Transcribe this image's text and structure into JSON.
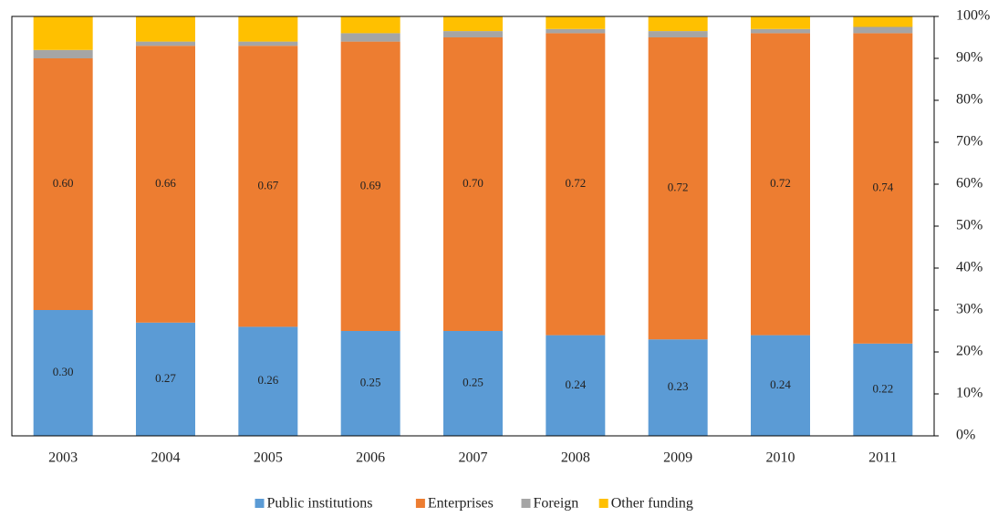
{
  "chart_data": {
    "type": "stacked_bar",
    "categories": [
      "2003",
      "2004",
      "2005",
      "2006",
      "2007",
      "2008",
      "2009",
      "2010",
      "2011"
    ],
    "series": [
      {
        "name": "Public institutions",
        "color": "#5b9bd5",
        "values": [
          30,
          27,
          26,
          25,
          25,
          24,
          23,
          24,
          22
        ],
        "value_labels": [
          "0.30",
          "0.27",
          "0.26",
          "0.25",
          "0.25",
          "0.24",
          "0.23",
          "0.24",
          "0.22"
        ]
      },
      {
        "name": "Enterprises",
        "color": "#ed7d31",
        "values": [
          60,
          66,
          67,
          69,
          70,
          72,
          72,
          72,
          74
        ],
        "value_labels": [
          "0.60",
          "0.66",
          "0.67",
          "0.69",
          "0.70",
          "0.72",
          "0.72",
          "0.72",
          "0.74"
        ]
      },
      {
        "name": "Foreign",
        "color": "#a5a5a5",
        "values": [
          2,
          1,
          1,
          2,
          1.5,
          1,
          1.5,
          1,
          1.5
        ]
      },
      {
        "name": "Other funding",
        "color": "#ffc000",
        "values": [
          8,
          6,
          6,
          4,
          3.5,
          3,
          3.5,
          3,
          2.5
        ]
      }
    ],
    "ylim": [
      0,
      100
    ],
    "yticks": [
      {
        "value": 0,
        "label": "0%"
      },
      {
        "value": 10,
        "label": "10%"
      },
      {
        "value": 20,
        "label": "20%"
      },
      {
        "value": 30,
        "label": "30%"
      },
      {
        "value": 40,
        "label": "40%"
      },
      {
        "value": 50,
        "label": "50%"
      },
      {
        "value": 60,
        "label": "60%"
      },
      {
        "value": 70,
        "label": "70%"
      },
      {
        "value": 80,
        "label": "80%"
      },
      {
        "value": 90,
        "label": "90%"
      },
      {
        "value": 100,
        "label": "100%"
      }
    ],
    "legend": "bottom"
  }
}
